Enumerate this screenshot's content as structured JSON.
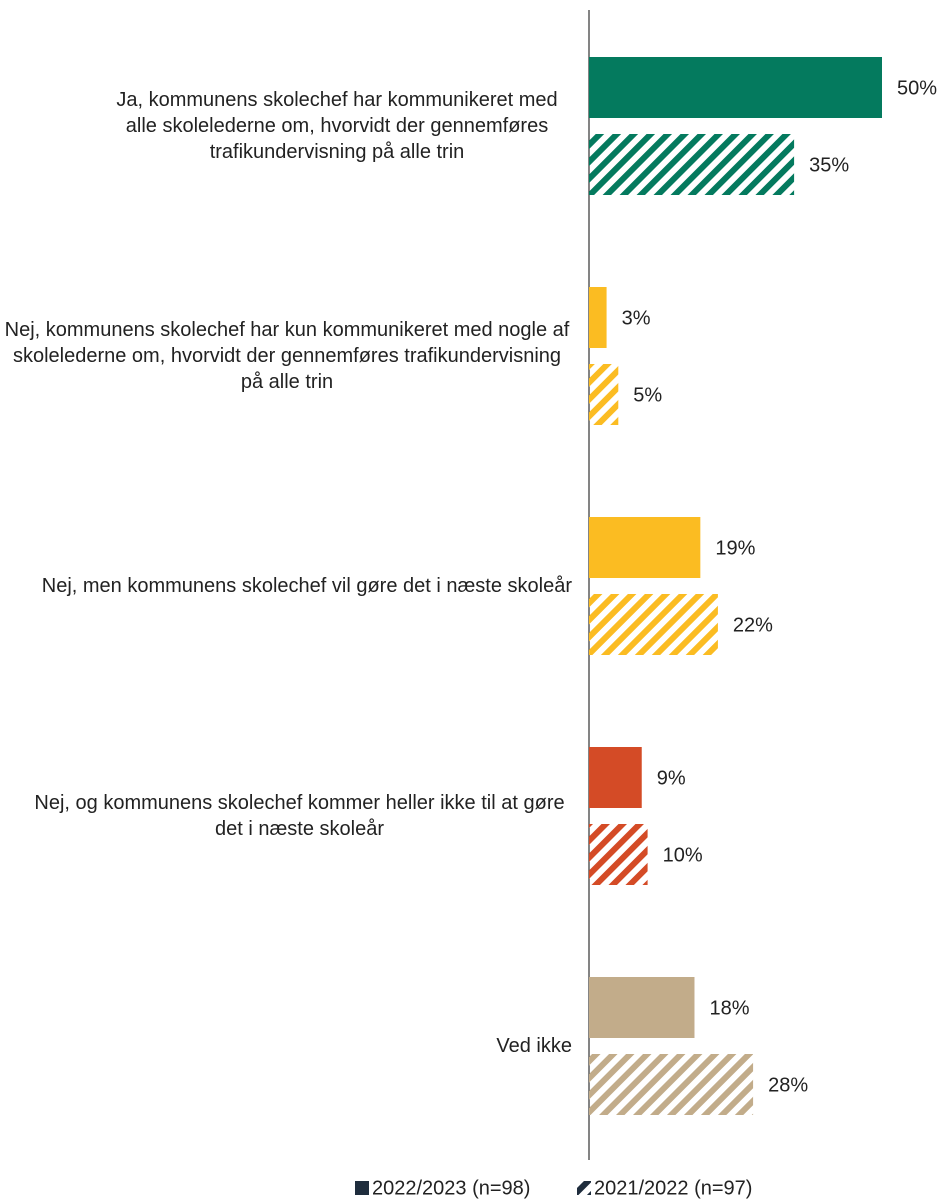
{
  "chart_data": {
    "type": "bar",
    "orientation": "horizontal",
    "categories": [
      "Ja, kommunens skolechef har kommunikeret med alle skolelederne om, hvorvidt der gennemføres trafikundervisning på alle trin",
      "Nej, kommunens skolechef har kun kommunikeret med nogle af skolelederne om, hvorvidt der gennemføres trafikundervisning på alle trin",
      "Nej, men kommunens skolechef vil gøre det i næste skoleår",
      "Nej, og kommunens skolechef kommer heller ikke til at gøre det i næste skoleår",
      "Ved ikke"
    ],
    "colors": [
      "#047a5e",
      "#fbbc22",
      "#fbbc22",
      "#d44b26",
      "#c2ac8a"
    ],
    "series": [
      {
        "name": "2022/2023 (n=98)",
        "values": [
          50,
          3,
          19,
          9,
          18
        ],
        "value_labels": [
          "50%",
          "3%",
          "19%",
          "9%",
          "18%"
        ]
      },
      {
        "name": "2021/2022 (n=97)",
        "values": [
          35,
          5,
          22,
          10,
          28
        ],
        "value_labels": [
          "35%",
          "5%",
          "22%",
          "10%",
          "28%"
        ]
      }
    ],
    "xlim": [
      0,
      50
    ],
    "legend": "bottom"
  }
}
